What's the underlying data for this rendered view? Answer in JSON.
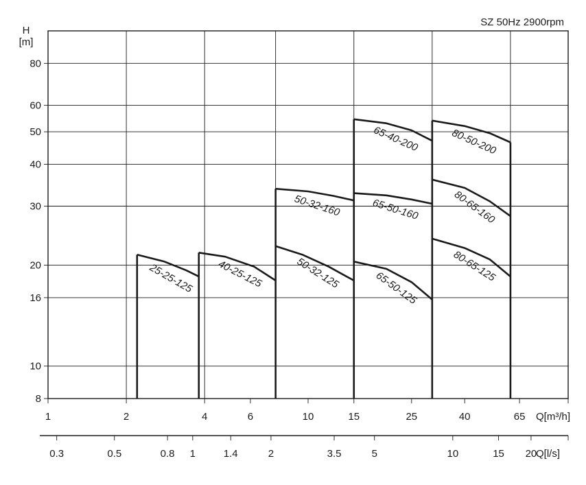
{
  "chart_data": {
    "type": "line",
    "title": "SZ 50Hz   2900rpm",
    "ylabel_symbol": "H",
    "ylabel_unit": "[m]",
    "xlabel_primary": "Q[m³/h]",
    "xlabel_secondary": "Q[l/s]",
    "x_scale": "log",
    "y_scale": "log",
    "xlim": [
      1,
      100
    ],
    "ylim": [
      8,
      100
    ],
    "x_ticks": [
      1,
      2,
      4,
      6,
      10,
      15,
      25,
      40,
      65
    ],
    "x_gridlines": [
      2,
      4,
      7.5,
      15,
      30,
      60
    ],
    "y_ticks": [
      8,
      10,
      16,
      20,
      30,
      40,
      50,
      60,
      80
    ],
    "secondary_ticks": [
      0.3,
      0.5,
      0.8,
      1,
      1.4,
      2,
      3.5,
      5,
      10,
      15,
      20
    ],
    "grid": true,
    "series": [
      {
        "name": "25-25-125",
        "x": [
          2.2,
          2.8,
          3.4,
          3.8
        ],
        "y": [
          21.5,
          20.5,
          19.3,
          18.5
        ],
        "x_end": 3.8
      },
      {
        "name": "40-25-125",
        "x": [
          3.8,
          4.8,
          6.2,
          7.5
        ],
        "y": [
          21.8,
          21.2,
          19.8,
          18.0
        ],
        "x_end": 7.5
      },
      {
        "name": "50-32-125",
        "x": [
          7.5,
          9.5,
          12.0,
          15.0
        ],
        "y": [
          22.8,
          21.5,
          19.8,
          18.0
        ],
        "x_end": 15.0
      },
      {
        "name": "50-32-160",
        "x": [
          7.5,
          10.0,
          12.5,
          15.0
        ],
        "y": [
          33.8,
          33.2,
          32.2,
          31.2
        ],
        "x_end": 15.0
      },
      {
        "name": "65-50-125",
        "x": [
          15.0,
          20.0,
          25.0,
          30.0
        ],
        "y": [
          20.5,
          19.5,
          17.8,
          15.8
        ],
        "x_end": 30.0
      },
      {
        "name": "65-50-160",
        "x": [
          15.0,
          20.0,
          25.0,
          30.0
        ],
        "y": [
          32.8,
          32.3,
          31.4,
          30.5
        ],
        "x_end": 30.0
      },
      {
        "name": "65-40-200",
        "x": [
          15.0,
          20.0,
          25.0,
          30.0
        ],
        "y": [
          54.5,
          53.0,
          50.5,
          47.0
        ],
        "x_end": 30.0
      },
      {
        "name": "80-65-125",
        "x": [
          30.0,
          40.0,
          50.0,
          60.0
        ],
        "y": [
          24.0,
          22.5,
          20.8,
          18.5
        ],
        "x_end": 60.0
      },
      {
        "name": "80-65-160",
        "x": [
          30.0,
          40.0,
          50.0,
          60.0
        ],
        "y": [
          36.0,
          34.0,
          31.0,
          28.0
        ],
        "x_end": 60.0
      },
      {
        "name": "80-50-200",
        "x": [
          30.0,
          40.0,
          50.0,
          60.0
        ],
        "y": [
          54.0,
          52.0,
          49.5,
          46.5
        ],
        "x_end": 60.0
      }
    ]
  }
}
